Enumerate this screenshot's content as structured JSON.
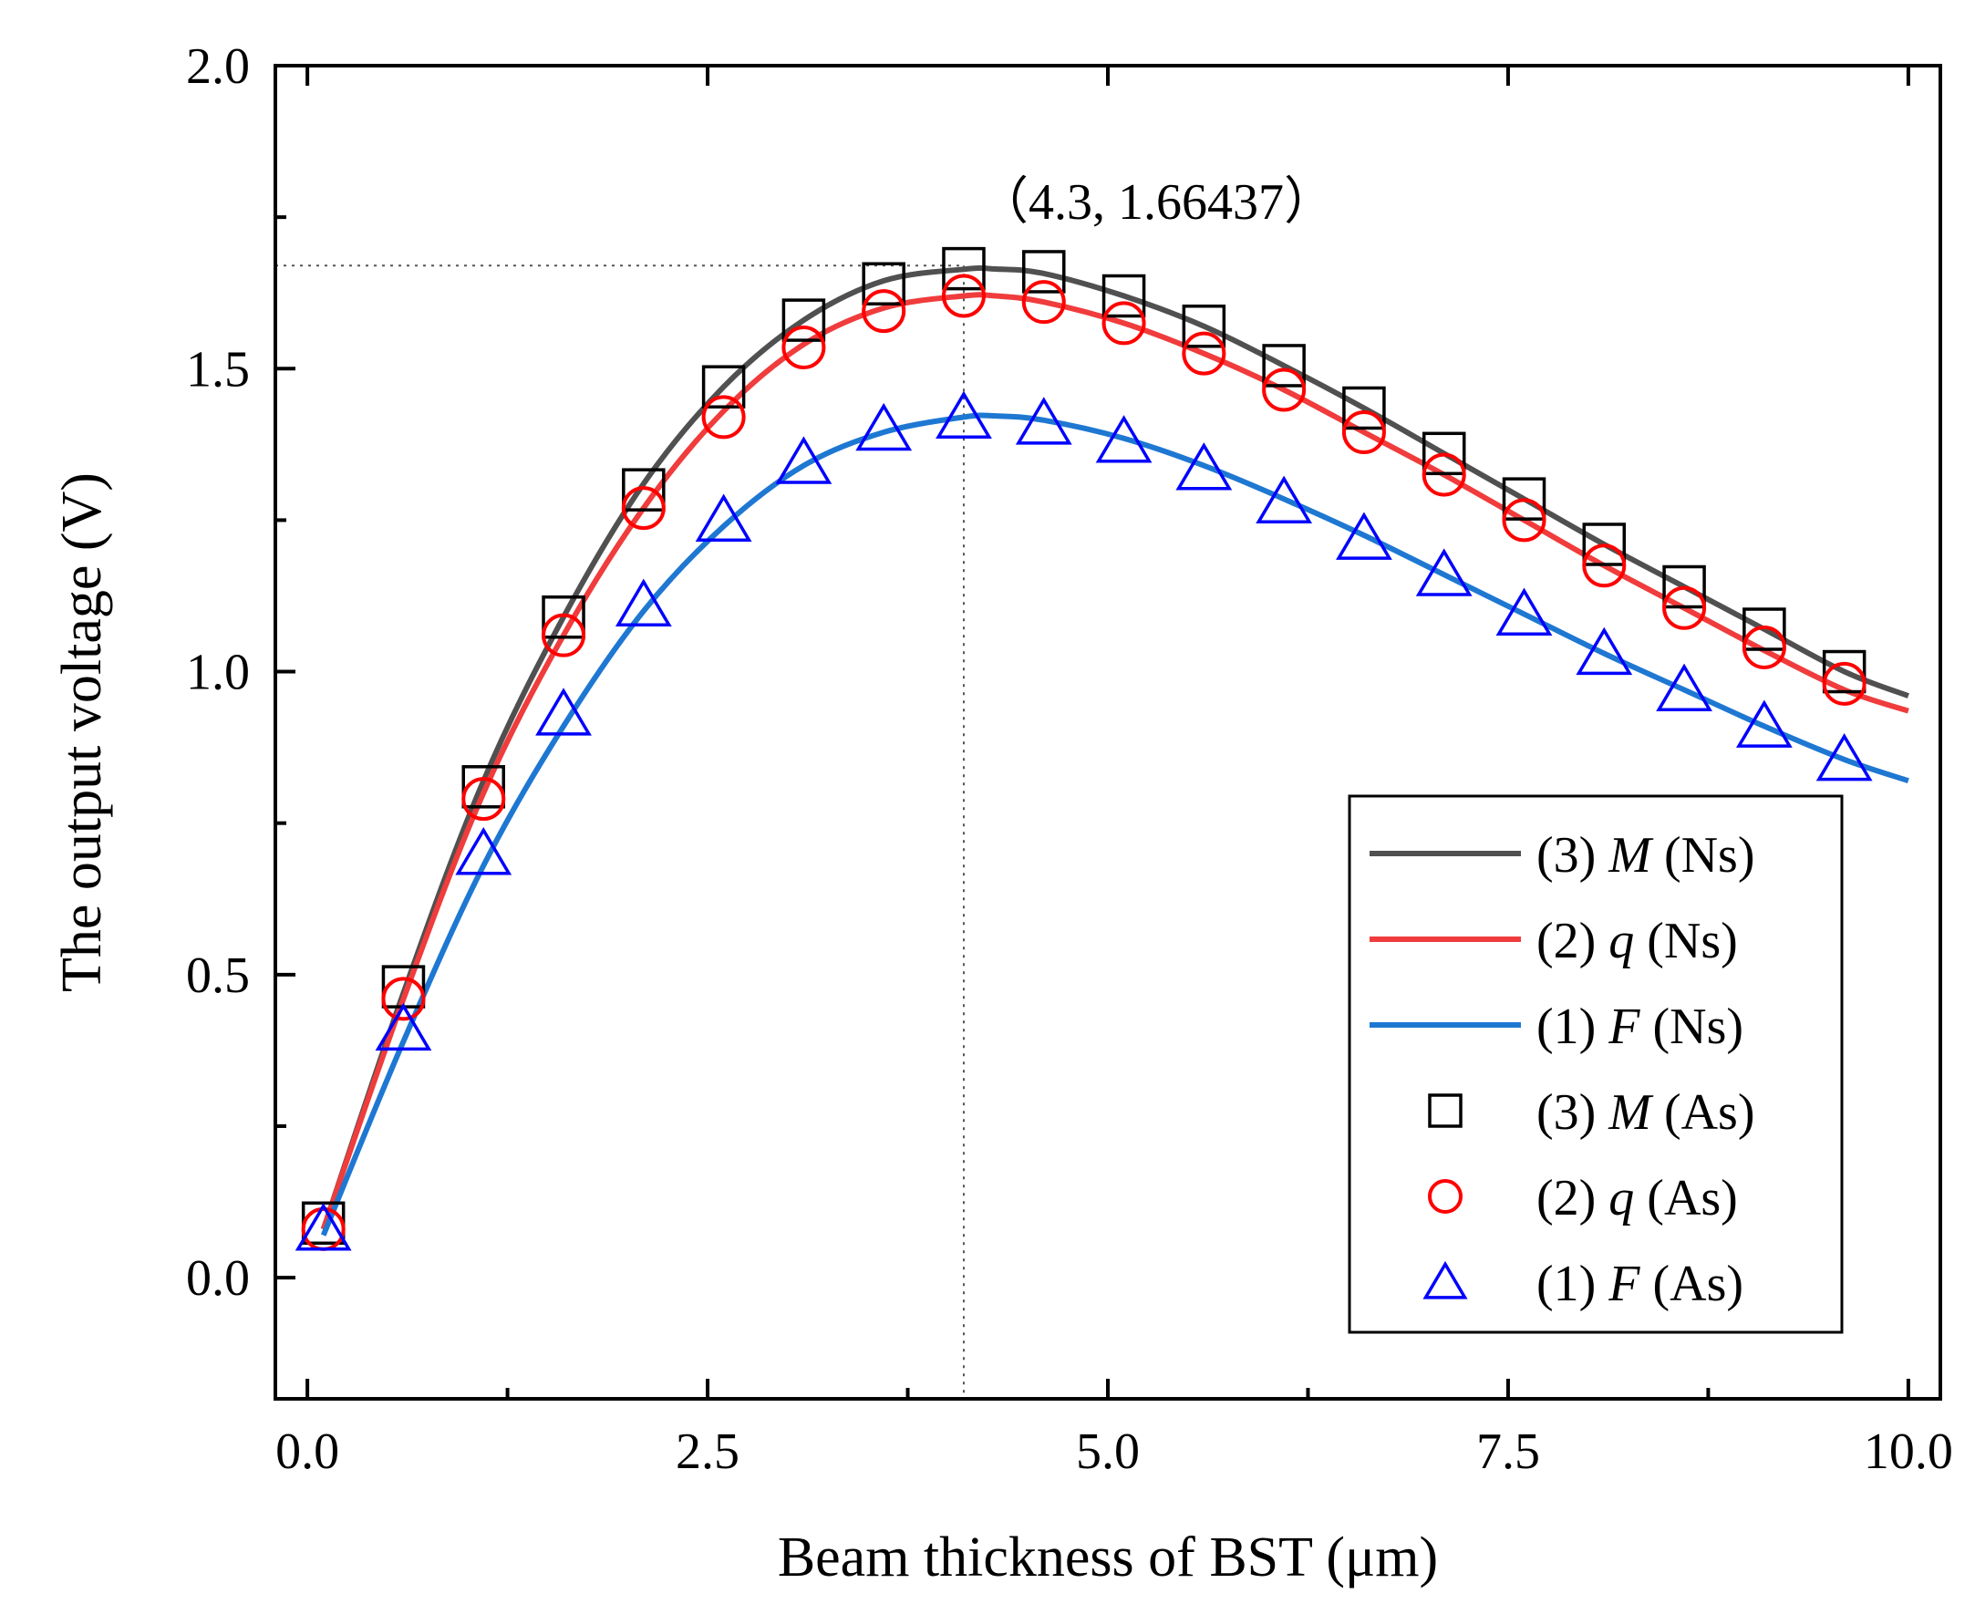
{
  "chart_data": {
    "type": "line",
    "title": "",
    "xlabel": "Beam thickness of BST (μm)",
    "ylabel": "The output voltage (V)",
    "xlim": [
      -0.2,
      10.2
    ],
    "ylim": [
      -0.2,
      2.0
    ],
    "xticks": [
      0.0,
      2.5,
      5.0,
      7.5,
      10.0
    ],
    "xtick_labels": [
      "0.0",
      "2.5",
      "5.0",
      "7.5",
      "10.0"
    ],
    "yticks": [
      0.0,
      0.5,
      1.0,
      1.5,
      2.0
    ],
    "ytick_labels": [
      "0.0",
      "0.5",
      "1.0",
      "1.5",
      "2.0"
    ],
    "annotation": {
      "text": "（4.3, 1.66437）",
      "x": 4.1,
      "y": 1.67
    },
    "legend": {
      "position": "bottom-right",
      "entries": [
        {
          "num": "(3)",
          "sym": "M",
          "tag": "(Ns)",
          "kind": "line",
          "color": "#505050"
        },
        {
          "num": "(2)",
          "sym": "q",
          "tag": "(Ns)",
          "kind": "line",
          "color": "#f03c3c"
        },
        {
          "num": "(1)",
          "sym": "F",
          "tag": "(Ns)",
          "kind": "line",
          "color": "#1e78d2"
        },
        {
          "num": "(3)",
          "sym": "M",
          "tag": "(As)",
          "kind": "square",
          "color": "#000000"
        },
        {
          "num": "(2)",
          "sym": "q",
          "tag": "(As)",
          "kind": "circle",
          "color": "#ff0000"
        },
        {
          "num": "(1)",
          "sym": "F",
          "tag": "(As)",
          "kind": "triangle",
          "color": "#0000ff"
        }
      ]
    },
    "line_series": [
      {
        "name": "(3) M (Ns)",
        "color": "#505050",
        "x": [
          0.1,
          0.6,
          1.1,
          1.6,
          2.1,
          2.6,
          3.1,
          3.6,
          4.1,
          4.3,
          4.6,
          5.1,
          5.6,
          6.1,
          6.6,
          7.1,
          7.6,
          8.1,
          8.6,
          9.1,
          9.6,
          10.0
        ],
        "y": [
          0.08,
          0.47,
          0.82,
          1.09,
          1.31,
          1.47,
          1.58,
          1.645,
          1.664,
          1.6644,
          1.657,
          1.62,
          1.57,
          1.505,
          1.435,
          1.36,
          1.285,
          1.21,
          1.14,
          1.07,
          1.0,
          0.96
        ]
      },
      {
        "name": "(2) q (Ns)",
        "color": "#f03c3c",
        "x": [
          0.1,
          0.6,
          1.1,
          1.6,
          2.1,
          2.6,
          3.1,
          3.6,
          4.1,
          4.3,
          4.6,
          5.1,
          5.6,
          6.1,
          6.6,
          7.1,
          7.6,
          8.1,
          8.6,
          9.1,
          9.6,
          10.0
        ],
        "y": [
          0.08,
          0.46,
          0.8,
          1.06,
          1.27,
          1.43,
          1.54,
          1.6,
          1.62,
          1.62,
          1.61,
          1.575,
          1.525,
          1.465,
          1.395,
          1.325,
          1.25,
          1.175,
          1.105,
          1.035,
          0.97,
          0.935
        ]
      },
      {
        "name": "(1) F (Ns)",
        "color": "#1e78d2",
        "x": [
          0.1,
          0.6,
          1.1,
          1.6,
          2.1,
          2.6,
          3.1,
          3.6,
          4.1,
          4.3,
          4.6,
          5.1,
          5.6,
          6.1,
          6.6,
          7.1,
          7.6,
          8.1,
          8.6,
          9.1,
          9.6,
          10.0
        ],
        "y": [
          0.07,
          0.39,
          0.68,
          0.91,
          1.1,
          1.24,
          1.34,
          1.395,
          1.42,
          1.422,
          1.415,
          1.385,
          1.34,
          1.285,
          1.225,
          1.16,
          1.095,
          1.03,
          0.97,
          0.91,
          0.855,
          0.82
        ]
      }
    ],
    "marker_series": [
      {
        "name": "(3) M (As)",
        "marker": "square",
        "color": "#000000",
        "x": [
          0.1,
          0.6,
          1.1,
          1.6,
          2.1,
          2.6,
          3.1,
          3.6,
          4.1,
          4.6,
          5.1,
          5.6,
          6.1,
          6.6,
          7.1,
          7.6,
          8.1,
          8.6,
          9.1,
          9.6
        ],
        "y": [
          0.09,
          0.48,
          0.81,
          1.09,
          1.3,
          1.47,
          1.58,
          1.64,
          1.665,
          1.66,
          1.62,
          1.57,
          1.505,
          1.435,
          1.36,
          1.285,
          1.21,
          1.14,
          1.07,
          1.0
        ]
      },
      {
        "name": "(2) q (As)",
        "marker": "circle",
        "color": "#ff0000",
        "x": [
          0.1,
          0.6,
          1.1,
          1.6,
          2.1,
          2.6,
          3.1,
          3.6,
          4.1,
          4.6,
          5.1,
          5.6,
          6.1,
          6.6,
          7.1,
          7.6,
          8.1,
          8.6,
          9.1,
          9.6
        ],
        "y": [
          0.08,
          0.46,
          0.79,
          1.06,
          1.27,
          1.42,
          1.535,
          1.595,
          1.62,
          1.61,
          1.575,
          1.525,
          1.465,
          1.395,
          1.325,
          1.25,
          1.175,
          1.105,
          1.04,
          0.98
        ]
      },
      {
        "name": "(1) F (As)",
        "marker": "triangle",
        "color": "#0000ff",
        "x": [
          0.1,
          0.6,
          1.1,
          1.6,
          2.1,
          2.6,
          3.1,
          3.6,
          4.1,
          4.6,
          5.1,
          5.6,
          6.1,
          6.6,
          7.1,
          7.6,
          8.1,
          8.6,
          9.1,
          9.6
        ],
        "y": [
          0.08,
          0.41,
          0.7,
          0.93,
          1.11,
          1.25,
          1.345,
          1.4,
          1.42,
          1.41,
          1.38,
          1.335,
          1.28,
          1.22,
          1.16,
          1.095,
          1.03,
          0.97,
          0.91,
          0.855
        ]
      }
    ]
  }
}
